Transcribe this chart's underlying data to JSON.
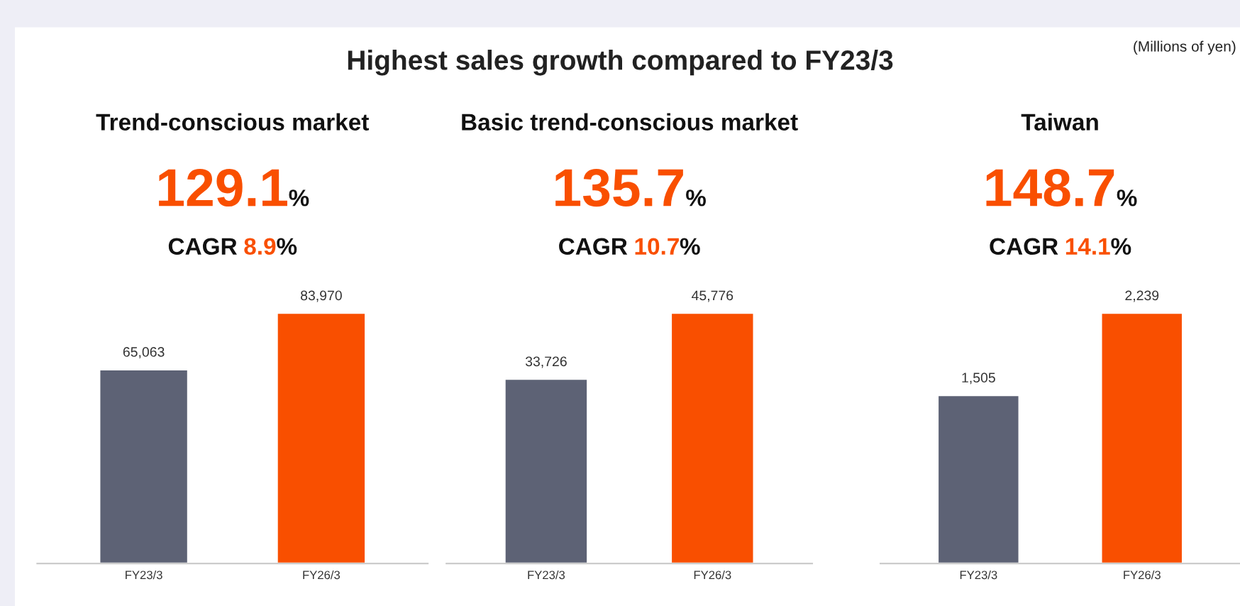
{
  "chart_data": [
    {
      "type": "other",
      "title": "Highest sales growth compared to FY23/3",
      "annotations": [
        "(Millions of yen)"
      ]
    },
    {
      "type": "bar",
      "title": "Trend-conscious market",
      "subtitle": "129.1%",
      "annotations": [
        "CAGR 8.9%"
      ],
      "categories": [
        "FY23/3",
        "FY26/3"
      ],
      "values": [
        65063,
        83970
      ],
      "colors": [
        "#5d6275",
        "#f94f00"
      ],
      "value_labels": [
        "65,063",
        "83,970"
      ],
      "tick_labels": "x",
      "grid": false,
      "legend": false
    },
    {
      "type": "bar",
      "title": "Basic trend-conscious market",
      "subtitle": "135.7%",
      "annotations": [
        "CAGR 10.7%"
      ],
      "categories": [
        "FY23/3",
        "FY26/3"
      ],
      "values": [
        33726,
        45776
      ],
      "colors": [
        "#5d6275",
        "#f94f00"
      ],
      "value_labels": [
        "33,726",
        "45,776"
      ],
      "tick_labels": "x",
      "grid": false,
      "legend": false
    },
    {
      "type": "bar",
      "title": "Taiwan",
      "subtitle": "148.7%",
      "annotations": [
        "CAGR 14.1%"
      ],
      "categories": [
        "FY23/3",
        "FY26/3"
      ],
      "values": [
        1505,
        2239
      ],
      "colors": [
        "#5d6275",
        "#f94f00"
      ],
      "value_labels": [
        "1,505",
        "2,239"
      ],
      "tick_labels": "x",
      "grid": false,
      "legend": false
    }
  ]
}
